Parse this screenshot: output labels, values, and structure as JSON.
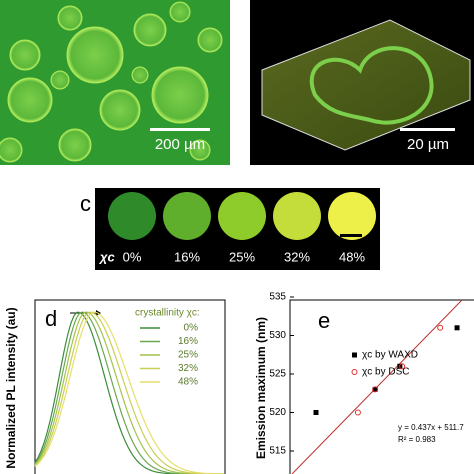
{
  "panels": {
    "a": {
      "scale_bar": "200 µm"
    },
    "b": {
      "scale_bar": "20 µm"
    },
    "c": {
      "label": "c",
      "symbol": "χc",
      "values": [
        "0%",
        "16%",
        "25%",
        "32%",
        "48%"
      ],
      "colors": [
        "#2f8a2a",
        "#5fae2c",
        "#8dcc2a",
        "#c4dd3a",
        "#eef04a"
      ]
    },
    "d": {
      "label": "d",
      "y_label": "Normalized PL intensity (au)",
      "legend_title": "crystallinity χc:",
      "legend": [
        {
          "name": "0%",
          "color": "#3b8c3b"
        },
        {
          "name": "16%",
          "color": "#6aa84f"
        },
        {
          "name": "25%",
          "color": "#a3c44a"
        },
        {
          "name": "32%",
          "color": "#c9cf55"
        },
        {
          "name": "48%",
          "color": "#e6df6a"
        }
      ]
    },
    "e": {
      "label": "e",
      "y_label": "Emission maximum (nm)",
      "ylim": [
        512,
        536
      ],
      "yticks": [
        515,
        520,
        525,
        530,
        535
      ],
      "xlim": [
        0,
        56
      ],
      "series": [
        {
          "name": "χc by WAXD",
          "color": "#000000",
          "marker": "square",
          "x": [
            8,
            26.2,
            33.8,
            51.4
          ],
          "values": [
            520,
            523,
            526,
            531
          ]
        },
        {
          "name": "χc by DSC",
          "color": "#e03030",
          "marker": "circle",
          "x": [
            20.9,
            26.2,
            34.5,
            46.2
          ],
          "values": [
            520,
            523,
            526,
            531
          ]
        }
      ],
      "fit_equation": "y = 0.437x + 511.7",
      "r_squared": "R² = 0.983"
    }
  }
}
